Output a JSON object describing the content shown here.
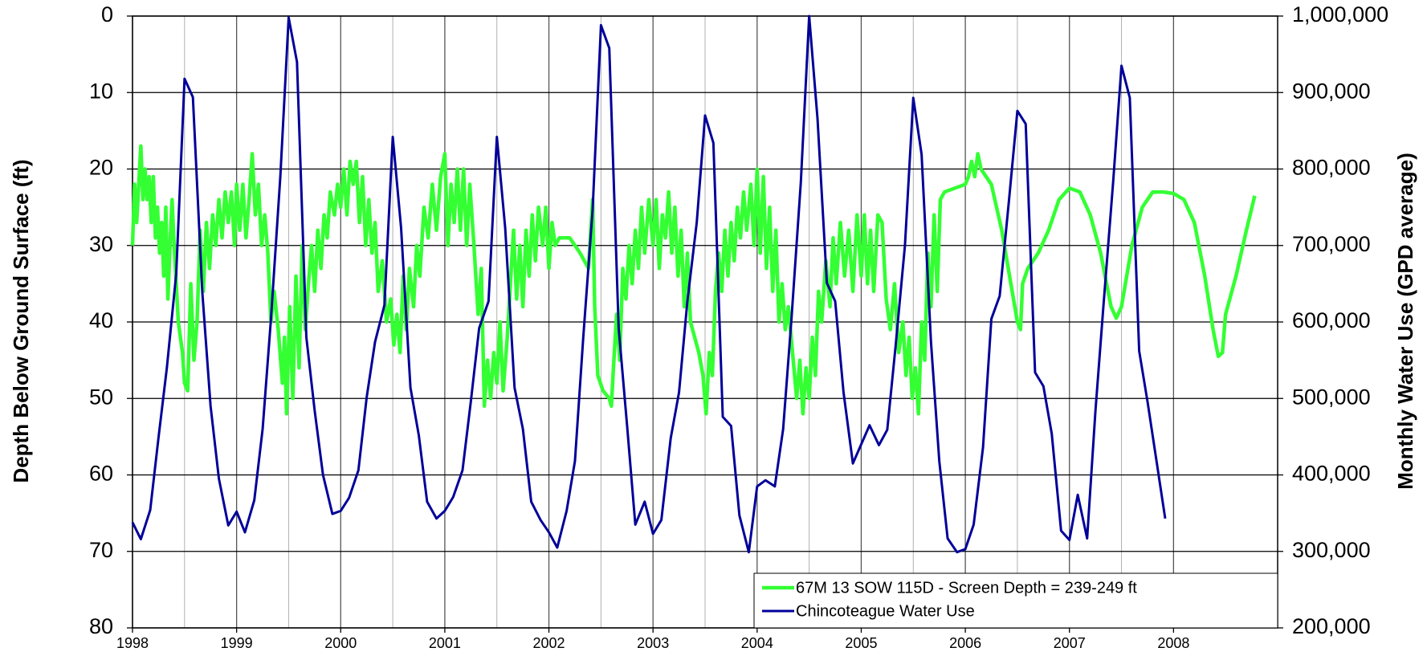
{
  "chart_data": {
    "type": "line",
    "y_label": "Depth Below Ground Surface (ft)",
    "y2_label": "Monthly Water Use (GPD average)",
    "xlim": [
      1998,
      2009
    ],
    "xticks": [
      1998,
      1999,
      2000,
      2001,
      2002,
      2003,
      2004,
      2005,
      2006,
      2007,
      2008
    ],
    "ylim": [
      80,
      0
    ],
    "yticks": [
      0,
      10,
      20,
      30,
      40,
      50,
      60,
      70,
      80
    ],
    "y2lim": [
      200000,
      1000000
    ],
    "y2ticks": [
      {
        "value": 200000,
        "label": "200,000"
      },
      {
        "value": 300000,
        "label": "300,000"
      },
      {
        "value": 400000,
        "label": "400,000"
      },
      {
        "value": 500000,
        "label": "500,000"
      },
      {
        "value": 600000,
        "label": "600,000"
      },
      {
        "value": 700000,
        "label": "700,000"
      },
      {
        "value": 800000,
        "label": "800,000"
      },
      {
        "value": 900000,
        "label": "900,000"
      },
      {
        "value": 1000000,
        "label": "1,000,000"
      }
    ],
    "grid": true,
    "legend": "lower right",
    "series": [
      {
        "name": "67M 13 SOW 115D - Screen Depth = 239-249 ft",
        "color": "#33ff33",
        "axis": "y",
        "x": [
          1998.0,
          1998.02,
          1998.04,
          1998.06,
          1998.08,
          1998.1,
          1998.12,
          1998.14,
          1998.16,
          1998.18,
          1998.2,
          1998.22,
          1998.24,
          1998.26,
          1998.28,
          1998.3,
          1998.32,
          1998.34,
          1998.36,
          1998.38,
          1998.4,
          1998.44,
          1998.48,
          1998.5,
          1998.53,
          1998.56,
          1998.59,
          1998.62,
          1998.65,
          1998.68,
          1998.71,
          1998.74,
          1998.77,
          1998.8,
          1998.83,
          1998.86,
          1998.89,
          1998.92,
          1998.95,
          1998.98,
          1999.0,
          1999.03,
          1999.06,
          1999.09,
          1999.12,
          1999.15,
          1999.18,
          1999.21,
          1999.24,
          1999.27,
          1999.3,
          1999.33,
          1999.36,
          1999.4,
          1999.44,
          1999.46,
          1999.48,
          1999.51,
          1999.54,
          1999.57,
          1999.6,
          1999.63,
          1999.66,
          1999.69,
          1999.72,
          1999.75,
          1999.78,
          1999.81,
          1999.84,
          1999.87,
          1999.9,
          1999.94,
          1999.97,
          2000.0,
          2000.03,
          2000.06,
          2000.09,
          2000.12,
          2000.15,
          2000.18,
          2000.21,
          2000.24,
          2000.27,
          2000.3,
          2000.33,
          2000.36,
          2000.4,
          2000.44,
          2000.48,
          2000.51,
          2000.54,
          2000.57,
          2000.6,
          2000.63,
          2000.66,
          2000.7,
          2000.73,
          2000.76,
          2000.8,
          2000.84,
          2000.88,
          2000.92,
          2000.96,
          2001.0,
          2001.03,
          2001.06,
          2001.09,
          2001.12,
          2001.15,
          2001.18,
          2001.21,
          2001.24,
          2001.28,
          2001.32,
          2001.35,
          2001.38,
          2001.41,
          2001.44,
          2001.47,
          2001.5,
          2001.53,
          2001.56,
          2001.6,
          2001.63,
          2001.66,
          2001.69,
          2001.72,
          2001.75,
          2001.78,
          2001.81,
          2001.84,
          2001.87,
          2001.9,
          2001.94,
          2001.97,
          2002.0,
          2002.03,
          2002.06,
          2002.1,
          2002.2,
          2002.3,
          2002.38,
          2002.42,
          2002.44,
          2002.47,
          2002.52,
          2002.58,
          2002.6,
          2002.62,
          2002.65,
          2002.68,
          2002.71,
          2002.74,
          2002.77,
          2002.8,
          2002.83,
          2002.86,
          2002.89,
          2002.92,
          2002.96,
          2003.0,
          2003.03,
          2003.06,
          2003.09,
          2003.12,
          2003.15,
          2003.18,
          2003.21,
          2003.24,
          2003.27,
          2003.3,
          2003.33,
          2003.36,
          2003.4,
          2003.44,
          2003.48,
          2003.51,
          2003.54,
          2003.57,
          2003.6,
          2003.63,
          2003.66,
          2003.69,
          2003.72,
          2003.75,
          2003.78,
          2003.81,
          2003.84,
          2003.87,
          2003.9,
          2003.94,
          2003.97,
          2004.0,
          2004.03,
          2004.06,
          2004.09,
          2004.12,
          2004.15,
          2004.18,
          2004.21,
          2004.24,
          2004.27,
          2004.3,
          2004.34,
          2004.38,
          2004.41,
          2004.44,
          2004.47,
          2004.5,
          2004.53,
          2004.56,
          2004.59,
          2004.62,
          2004.66,
          2004.7,
          2004.73,
          2004.76,
          2004.8,
          2004.84,
          2004.88,
          2004.92,
          2004.96,
          2005.0,
          2005.03,
          2005.06,
          2005.09,
          2005.12,
          2005.16,
          2005.2,
          2005.24,
          2005.28,
          2005.32,
          2005.36,
          2005.4,
          2005.43,
          2005.46,
          2005.49,
          2005.52,
          2005.55,
          2005.58,
          2005.61,
          2005.64,
          2005.67,
          2005.7,
          2005.73,
          2005.76,
          2005.8,
          2005.9,
          2006.0,
          2006.03,
          2006.06,
          2006.09,
          2006.12,
          2006.15,
          2006.25,
          2006.35,
          2006.45,
          2006.5,
          2006.53,
          2006.55,
          2006.6,
          2006.7,
          2006.8,
          2006.9,
          2007.0,
          2007.1,
          2007.2,
          2007.3,
          2007.4,
          2007.45,
          2007.5,
          2007.6,
          2007.7,
          2007.8,
          2007.9,
          2008.0,
          2008.1,
          2008.2,
          2008.3,
          2008.38,
          2008.43,
          2008.47,
          2008.5,
          2008.6,
          2008.7,
          2008.78
        ],
        "values": [
          30,
          22,
          27,
          22,
          17,
          24,
          20,
          24,
          21,
          27,
          21,
          29,
          25,
          31,
          27,
          34,
          25,
          37,
          30,
          24,
          30,
          40,
          44,
          48,
          49,
          35,
          45,
          40,
          28,
          36,
          27,
          33,
          26,
          30,
          24,
          29,
          23,
          27,
          23,
          30,
          22,
          28,
          22,
          29,
          24,
          18,
          26,
          22,
          30,
          26,
          31,
          40,
          36,
          41,
          48,
          42,
          52,
          38,
          50,
          34,
          46,
          30,
          41,
          35,
          30,
          36,
          28,
          33,
          26,
          29,
          23,
          26,
          22,
          25,
          20,
          26,
          19,
          22,
          19,
          27,
          21,
          30,
          24,
          31,
          27,
          36,
          32,
          40,
          37,
          43,
          39,
          44,
          34,
          41,
          33,
          38,
          30,
          34,
          25,
          29,
          22,
          28,
          21,
          18,
          30,
          22,
          27,
          20,
          28,
          20,
          30,
          22,
          30,
          39,
          33,
          51,
          45,
          50,
          44,
          48,
          40,
          49,
          42,
          35,
          28,
          37,
          30,
          38,
          28,
          34,
          26,
          32,
          25,
          30,
          25,
          33,
          27,
          30,
          29,
          29,
          31,
          33,
          24,
          38,
          47,
          49,
          50,
          51,
          46,
          39,
          45,
          33,
          37,
          30,
          35,
          28,
          33,
          25,
          31,
          24,
          30,
          24,
          33,
          26,
          29,
          23,
          31,
          25,
          34,
          28,
          38,
          31,
          40,
          42,
          44,
          47,
          52,
          44,
          47,
          36,
          31,
          36,
          28,
          34,
          27,
          32,
          25,
          29,
          23,
          28,
          22,
          30,
          20,
          31,
          21,
          33,
          25,
          36,
          28,
          40,
          35,
          41,
          38,
          44,
          50,
          45,
          52,
          46,
          50,
          42,
          47,
          36,
          40,
          32,
          38,
          29,
          35,
          27,
          34,
          28,
          36,
          26,
          34,
          26,
          35,
          28,
          36,
          26,
          27,
          37,
          41,
          35,
          44,
          40,
          47,
          42,
          50,
          46,
          52,
          40,
          45,
          31,
          38,
          26,
          36,
          24,
          23,
          22.5,
          22,
          21,
          19,
          21,
          18,
          20,
          22,
          28,
          36,
          40,
          41,
          35,
          33,
          31,
          28,
          24,
          22.5,
          23,
          26,
          31,
          38,
          39.5,
          38,
          30,
          25,
          23,
          23,
          23.2,
          24,
          27,
          34,
          41,
          44.5,
          44,
          39,
          34,
          28,
          23.5
        ]
      },
      {
        "name": "Chincoteague Water Use",
        "color": "#000099",
        "axis": "y2",
        "x": [
          1998.0,
          1998.08,
          1998.17,
          1998.25,
          1998.33,
          1998.42,
          1998.5,
          1998.58,
          1998.67,
          1998.75,
          1998.83,
          1998.92,
          1999.0,
          1999.08,
          1999.17,
          1999.25,
          1999.33,
          1999.42,
          1999.5,
          1999.58,
          1999.67,
          1999.75,
          1999.83,
          1999.92,
          2000.0,
          2000.08,
          2000.17,
          2000.25,
          2000.33,
          2000.42,
          2000.5,
          2000.58,
          2000.67,
          2000.75,
          2000.83,
          2000.92,
          2001.0,
          2001.08,
          2001.17,
          2001.25,
          2001.33,
          2001.42,
          2001.5,
          2001.58,
          2001.67,
          2001.75,
          2001.83,
          2001.92,
          2002.0,
          2002.08,
          2002.17,
          2002.25,
          2002.33,
          2002.42,
          2002.5,
          2002.58,
          2002.67,
          2002.75,
          2002.83,
          2002.92,
          2003.0,
          2003.08,
          2003.17,
          2003.25,
          2003.33,
          2003.42,
          2003.5,
          2003.58,
          2003.67,
          2003.75,
          2003.83,
          2003.92,
          2004.0,
          2004.08,
          2004.17,
          2004.25,
          2004.33,
          2004.42,
          2004.5,
          2004.58,
          2004.67,
          2004.75,
          2004.83,
          2004.92,
          2005.0,
          2005.08,
          2005.17,
          2005.25,
          2005.33,
          2005.42,
          2005.5,
          2005.58,
          2005.67,
          2005.75,
          2005.83,
          2005.92,
          2006.0,
          2006.08,
          2006.17,
          2006.25,
          2006.33,
          2006.42,
          2006.5,
          2006.58,
          2006.67,
          2006.75,
          2006.83,
          2006.92,
          2007.0,
          2007.08,
          2007.17,
          2007.25,
          2007.33,
          2007.42,
          2007.5,
          2007.58,
          2007.67,
          2007.75,
          2007.83,
          2007.92
        ],
        "values": [
          338000,
          316000,
          354000,
          449000,
          540000,
          663000,
          918000,
          894000,
          640000,
          490000,
          395000,
          334000,
          352000,
          325000,
          367000,
          460000,
          604000,
          790000,
          998000,
          940000,
          580000,
          484000,
          400000,
          349000,
          353000,
          370000,
          406000,
          502000,
          574000,
          622000,
          842000,
          723000,
          514000,
          452000,
          365000,
          343000,
          353000,
          371000,
          406000,
          496000,
          592000,
          627000,
          842000,
          723000,
          514000,
          460000,
          365000,
          341000,
          325000,
          305000,
          353000,
          418000,
          580000,
          747000,
          988000,
          958000,
          592000,
          466000,
          335000,
          365000,
          323000,
          341000,
          448000,
          508000,
          627000,
          730000,
          870000,
          834000,
          476000,
          464000,
          347000,
          299000,
          385000,
          393000,
          385000,
          460000,
          604000,
          783000,
          1000000,
          866000,
          651000,
          627000,
          508000,
          415000,
          440000,
          465000,
          439000,
          459000,
          568000,
          700000,
          893000,
          819000,
          574000,
          418000,
          317000,
          299000,
          303000,
          335000,
          436000,
          604000,
          634000,
          760000,
          876000,
          859000,
          534000,
          516000,
          454000,
          327000,
          315000,
          374000,
          317000,
          484000,
          627000,
          783000,
          935000,
          893000,
          562000,
          496000,
          424000,
          343000
        ]
      }
    ]
  }
}
